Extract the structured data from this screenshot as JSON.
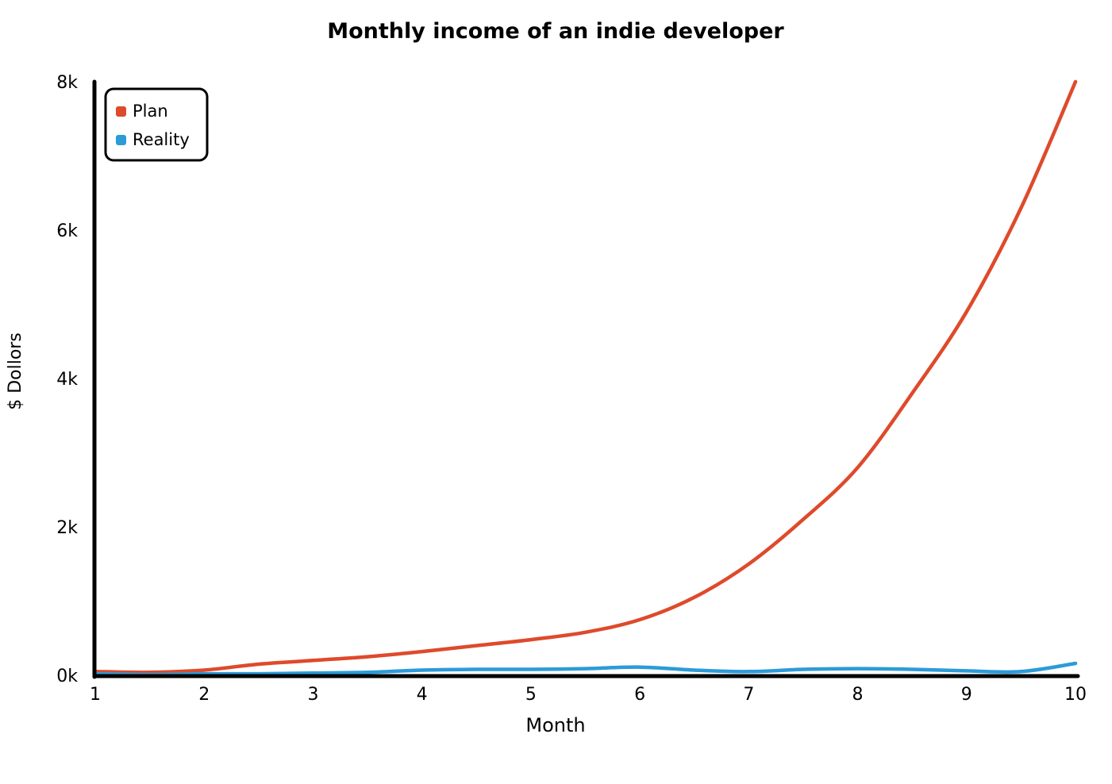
{
  "chart_data": {
    "type": "line",
    "title": "Monthly income of an indie developer",
    "xlabel": "Month",
    "ylabel": "$ Dollors",
    "x": [
      1,
      1.5,
      2,
      2.5,
      3,
      3.5,
      4,
      4.5,
      5,
      5.5,
      6,
      6.5,
      7,
      7.5,
      8,
      8.5,
      9,
      9.5,
      10
    ],
    "xlim": [
      1,
      10
    ],
    "ylim": [
      0,
      8000
    ],
    "x_ticks": [
      1,
      2,
      3,
      4,
      5,
      6,
      7,
      8,
      9,
      10
    ],
    "x_tick_labels": [
      "1",
      "2",
      "3",
      "4",
      "5",
      "6",
      "7",
      "8",
      "9",
      "10"
    ],
    "y_ticks": [
      0,
      2000,
      4000,
      6000,
      8000
    ],
    "y_tick_labels": [
      "0k",
      "2k",
      "4k",
      "6k",
      "8k"
    ],
    "grid": false,
    "legend_position": "top-left",
    "series": [
      {
        "name": "Plan",
        "color": "#de4a2b",
        "values": [
          50,
          40,
          70,
          150,
          200,
          250,
          320,
          400,
          480,
          580,
          750,
          1050,
          1500,
          2100,
          2800,
          3800,
          4900,
          6300,
          8000
        ]
      },
      {
        "name": "Reality",
        "color": "#2c9bd8",
        "values": [
          20,
          10,
          20,
          20,
          30,
          40,
          70,
          80,
          80,
          90,
          110,
          70,
          50,
          80,
          90,
          80,
          60,
          50,
          160
        ]
      }
    ]
  }
}
